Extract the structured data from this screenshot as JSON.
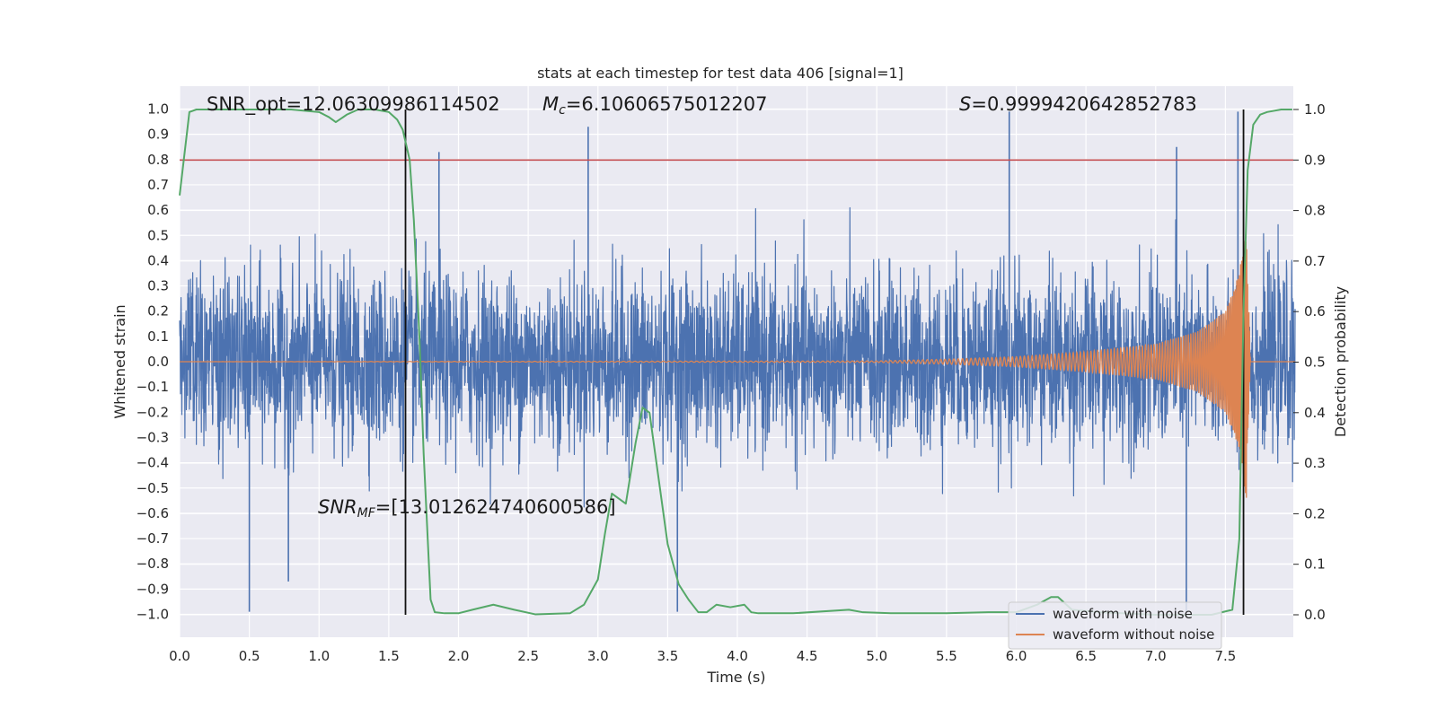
{
  "chart_data": {
    "type": "line",
    "title": "stats at each timestep for test data 406 [signal=1]",
    "xlabel": "Time (s)",
    "ylabel": "Whitened strain",
    "ylabel_right": "Detection probability",
    "xlim": [
      0,
      8
    ],
    "ylim": [
      -1.1,
      1.1
    ],
    "ylim_right": [
      -0.05,
      1.05
    ],
    "x_ticks": [
      "0.0",
      "0.5",
      "1.0",
      "1.5",
      "2.0",
      "2.5",
      "3.0",
      "3.5",
      "4.0",
      "4.5",
      "5.0",
      "5.5",
      "6.0",
      "6.5",
      "7.0",
      "7.5"
    ],
    "y_ticks": [
      "1.0",
      "0.9",
      "0.8",
      "0.7",
      "0.6",
      "0.5",
      "0.4",
      "0.3",
      "0.2",
      "0.1",
      "0.0",
      "−0.1",
      "−0.2",
      "−0.3",
      "−0.4",
      "−0.5",
      "−0.6",
      "−0.7",
      "−0.8",
      "−0.9",
      "−1.0"
    ],
    "y_ticks_right": [
      "1.0",
      "0.9",
      "0.8",
      "0.7",
      "0.6",
      "0.5",
      "0.4",
      "0.3",
      "0.2",
      "0.1",
      "0.0"
    ],
    "grid": true,
    "legend_position": "lower right",
    "annotations": {
      "snr_opt": "SNR_opt=12.06309986114502",
      "chirp_mass": "=6.10606575012207",
      "chirp_mass_symbol": "M",
      "chirp_mass_subscript": "c",
      "stat": "=0.9999420642852783",
      "stat_symbol": "S",
      "snr_mf": "=[13.012624740600586]",
      "snr_mf_symbol": "SNR",
      "snr_mf_subscript": "MF"
    },
    "threshold_line": {
      "axis": "right",
      "value": 0.9,
      "color": "#c44e52"
    },
    "vertical_lines": [
      1.62,
      7.63
    ],
    "series": [
      {
        "name": "waveform with noise",
        "color": "#4c72b0",
        "axis": "left",
        "envelope": "Gaussian noise, typical |amplitude| about 0.3–0.45, with spikes reaching about 0.93 at 2.93 s and 0.99 at 7.6 s, and dipping to −1.0 at 0.5 s and 7.22 s",
        "spikes": [
          {
            "x": 0.5,
            "y": -0.99
          },
          {
            "x": 0.78,
            "y": -0.87
          },
          {
            "x": 1.86,
            "y": 0.83
          },
          {
            "x": 2.93,
            "y": 0.93
          },
          {
            "x": 3.57,
            "y": -0.99
          },
          {
            "x": 5.95,
            "y": 0.99
          },
          {
            "x": 7.22,
            "y": -0.99
          },
          {
            "x": 7.59,
            "y": 0.99
          },
          {
            "x": 7.15,
            "y": 0.85
          }
        ]
      },
      {
        "name": "waveform without noise",
        "color": "#dd8452",
        "axis": "left",
        "envelope": [
          {
            "x": 0.0,
            "y": 0.0
          },
          {
            "x": 5.0,
            "y": 0.003
          },
          {
            "x": 5.5,
            "y": 0.01
          },
          {
            "x": 6.0,
            "y": 0.02
          },
          {
            "x": 6.5,
            "y": 0.04
          },
          {
            "x": 7.0,
            "y": 0.07
          },
          {
            "x": 7.3,
            "y": 0.12
          },
          {
            "x": 7.5,
            "y": 0.2
          },
          {
            "x": 7.6,
            "y": 0.35
          },
          {
            "x": 7.65,
            "y": 0.55
          },
          {
            "x": 7.68,
            "y": 0.0
          }
        ]
      },
      {
        "name": "detection probability",
        "color": "#55a868",
        "axis": "right",
        "x": [
          0.0,
          0.07,
          0.12,
          0.3,
          0.5,
          0.8,
          1.0,
          1.07,
          1.12,
          1.2,
          1.28,
          1.4,
          1.5,
          1.56,
          1.6,
          1.65,
          1.68,
          1.72,
          1.75,
          1.8,
          1.83,
          1.9,
          2.0,
          2.1,
          2.25,
          2.4,
          2.55,
          2.8,
          2.9,
          3.0,
          3.05,
          3.1,
          3.2,
          3.27,
          3.32,
          3.37,
          3.42,
          3.5,
          3.58,
          3.65,
          3.72,
          3.78,
          3.85,
          3.95,
          4.05,
          4.1,
          4.15,
          4.4,
          4.8,
          4.9,
          5.1,
          5.5,
          5.8,
          6.0,
          6.15,
          6.25,
          6.3,
          6.4,
          6.6,
          7.0,
          7.4,
          7.55,
          7.6,
          7.63,
          7.66,
          7.7,
          7.75,
          7.8,
          7.9,
          7.98
        ],
        "y": [
          0.83,
          0.995,
          1.0,
          1.0,
          1.0,
          1.0,
          0.995,
          0.985,
          0.975,
          0.99,
          1.0,
          1.0,
          0.995,
          0.98,
          0.96,
          0.9,
          0.78,
          0.55,
          0.32,
          0.03,
          0.005,
          0.003,
          0.003,
          0.01,
          0.02,
          0.01,
          0.001,
          0.003,
          0.02,
          0.07,
          0.16,
          0.24,
          0.22,
          0.34,
          0.41,
          0.4,
          0.3,
          0.14,
          0.06,
          0.03,
          0.005,
          0.005,
          0.02,
          0.015,
          0.02,
          0.005,
          0.003,
          0.003,
          0.01,
          0.005,
          0.003,
          0.003,
          0.005,
          0.005,
          0.02,
          0.035,
          0.035,
          0.01,
          0.005,
          0.0,
          0.0,
          0.01,
          0.15,
          0.6,
          0.88,
          0.97,
          0.99,
          0.995,
          1.0,
          1.0
        ]
      }
    ]
  }
}
